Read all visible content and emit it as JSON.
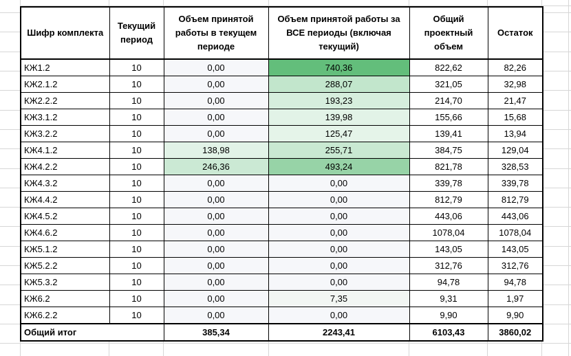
{
  "colors": {
    "grid_line": "#d6d6d6",
    "table_border": "#000000",
    "scale_max_green": "#63BE7B",
    "scale_min": "#F6F7FA"
  },
  "table": {
    "headers": [
      "Шифр комплекта",
      "Текущий период",
      "Объем принятой работы в текущем периоде",
      "Объем принятой работы за ВСЕ периоды (включая текущий)",
      "Общий проектный объем",
      "Остаток"
    ],
    "rows": [
      {
        "code": "КЖ1.2",
        "period": "10",
        "current": "0,00",
        "all_periods": "740,36",
        "project_total": "822,62",
        "remainder": "82,26",
        "current_bg": "#F6F7FA",
        "all_bg": "#63BE7B"
      },
      {
        "code": "КЖ2.1.2",
        "period": "10",
        "current": "0,00",
        "all_periods": "288,07",
        "project_total": "321,05",
        "remainder": "32,98",
        "current_bg": "#F6F7FA",
        "all_bg": "#C2E6CC"
      },
      {
        "code": "КЖ2.2.2",
        "period": "10",
        "current": "0,00",
        "all_periods": "193,23",
        "project_total": "214,70",
        "remainder": "21,47",
        "current_bg": "#F6F7FA",
        "all_bg": "#D6EEDD"
      },
      {
        "code": "КЖ3.1.2",
        "period": "10",
        "current": "0,00",
        "all_periods": "139,98",
        "project_total": "155,66",
        "remainder": "15,68",
        "current_bg": "#F6F7FA",
        "all_bg": "#E2F3E7"
      },
      {
        "code": "КЖ3.2.2",
        "period": "10",
        "current": "0,00",
        "all_periods": "125,47",
        "project_total": "139,41",
        "remainder": "13,94",
        "current_bg": "#F6F7FA",
        "all_bg": "#E5F4E9"
      },
      {
        "code": "КЖ4.1.2",
        "period": "10",
        "current": "138,98",
        "all_periods": "255,71",
        "project_total": "384,75",
        "remainder": "129,04",
        "current_bg": "#E2F3E7",
        "all_bg": "#C9E9D2"
      },
      {
        "code": "КЖ4.2.2",
        "period": "10",
        "current": "246,36",
        "all_periods": "493,24",
        "project_total": "821,78",
        "remainder": "328,53",
        "current_bg": "#CBE9D4",
        "all_bg": "#97D3A7"
      },
      {
        "code": "КЖ4.3.2",
        "period": "10",
        "current": "0,00",
        "all_periods": "0,00",
        "project_total": "339,78",
        "remainder": "339,78",
        "current_bg": "#F6F7FA",
        "all_bg": "#F6F7FA"
      },
      {
        "code": "КЖ4.4.2",
        "period": "10",
        "current": "0,00",
        "all_periods": "0,00",
        "project_total": "812,79",
        "remainder": "812,79",
        "current_bg": "#F6F7FA",
        "all_bg": "#F6F7FA"
      },
      {
        "code": "КЖ4.5.2",
        "period": "10",
        "current": "0,00",
        "all_periods": "0,00",
        "project_total": "443,06",
        "remainder": "443,06",
        "current_bg": "#F6F7FA",
        "all_bg": "#F6F7FA"
      },
      {
        "code": "КЖ4.6.2",
        "period": "10",
        "current": "0,00",
        "all_periods": "0,00",
        "project_total": "1078,04",
        "remainder": "1078,04",
        "current_bg": "#F6F7FA",
        "all_bg": "#F6F7FA"
      },
      {
        "code": "КЖ5.1.2",
        "period": "10",
        "current": "0,00",
        "all_periods": "0,00",
        "project_total": "143,05",
        "remainder": "143,05",
        "current_bg": "#F6F7FA",
        "all_bg": "#F6F7FA"
      },
      {
        "code": "КЖ5.2.2",
        "period": "10",
        "current": "0,00",
        "all_periods": "0,00",
        "project_total": "312,76",
        "remainder": "312,76",
        "current_bg": "#F6F7FA",
        "all_bg": "#F6F7FA"
      },
      {
        "code": "КЖ5.3.2",
        "period": "10",
        "current": "0,00",
        "all_periods": "0,00",
        "project_total": "94,78",
        "remainder": "94,78",
        "current_bg": "#F6F7FA",
        "all_bg": "#F6F7FA"
      },
      {
        "code": "КЖ6.2",
        "period": "10",
        "current": "0,00",
        "all_periods": "7,35",
        "project_total": "9,31",
        "remainder": "1,97",
        "current_bg": "#F6F7FA",
        "all_bg": "#F2F6F3"
      },
      {
        "code": "КЖ6.2.2",
        "period": "10",
        "current": "0,00",
        "all_periods": "0,00",
        "project_total": "9,90",
        "remainder": "9,90",
        "current_bg": "#F6F7FA",
        "all_bg": "#F6F7FA"
      }
    ],
    "total_row": {
      "label": "Общий итог",
      "current": "385,34",
      "all_periods": "2243,41",
      "project_total": "6103,43",
      "remainder": "3860,02"
    }
  }
}
